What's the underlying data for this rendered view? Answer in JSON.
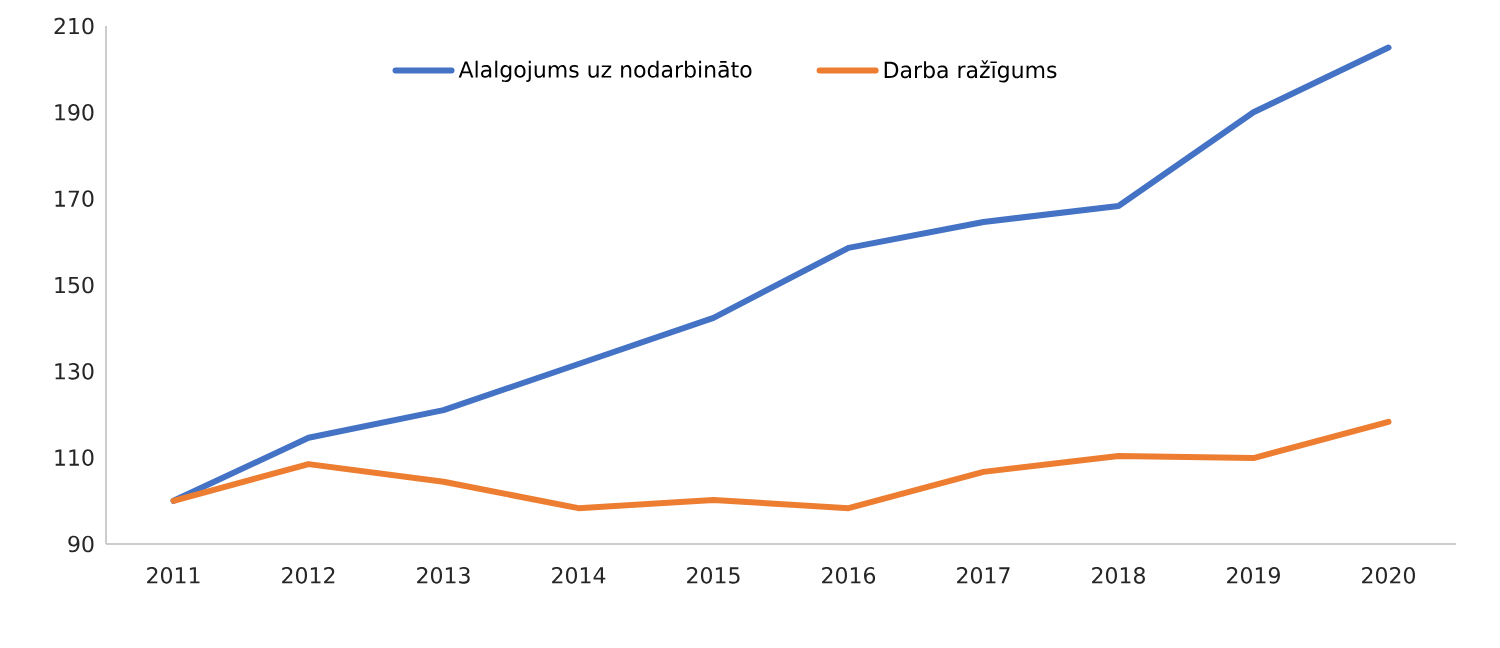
{
  "chart_data": {
    "type": "line",
    "categories": [
      "2011",
      "2012",
      "2013",
      "2014",
      "2015",
      "2016",
      "2017",
      "2018",
      "2019",
      "2020"
    ],
    "series": [
      {
        "name": "Alalgojums uz nodarbināto",
        "color": "#4472c4",
        "values": [
          100,
          114.6,
          121,
          131.7,
          142.4,
          158.6,
          164.6,
          168.3,
          190,
          205
        ]
      },
      {
        "name": "Darba ražīgums",
        "color": "#ed7d31",
        "values": [
          100,
          108.5,
          104.4,
          98.3,
          100.2,
          98.3,
          106.7,
          110.4,
          109.9,
          118.3
        ]
      }
    ],
    "ylim": [
      90,
      210
    ],
    "yticks": [
      90,
      110,
      130,
      150,
      170,
      190,
      210
    ],
    "grid": false,
    "legend": "top",
    "marker": "none",
    "line_style": "solid"
  }
}
